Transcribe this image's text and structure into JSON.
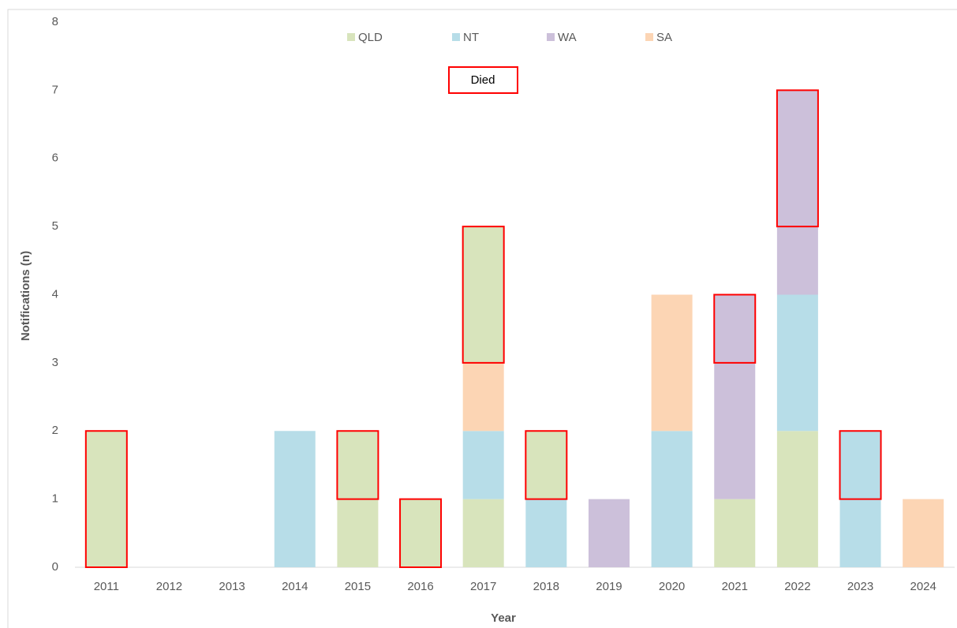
{
  "chart_data": {
    "type": "stacked-bar",
    "y_axis_label": "Notifications (n)",
    "x_axis_label": "Year",
    "categories": [
      "2011",
      "2012",
      "2013",
      "2014",
      "2015",
      "2016",
      "2017",
      "2018",
      "2019",
      "2020",
      "2021",
      "2022",
      "2023",
      "2024"
    ],
    "series": [
      {
        "name": "QLD",
        "color": "#d8e4bc",
        "values": [
          0,
          0,
          0,
          0,
          1,
          0,
          1,
          0,
          0,
          0,
          1,
          2,
          0,
          0
        ],
        "died": [
          2,
          0,
          0,
          0,
          1,
          1,
          2,
          1,
          0,
          0,
          0,
          0,
          0,
          0
        ]
      },
      {
        "name": "NT",
        "color": "#b7dde8",
        "values": [
          0,
          0,
          0,
          2,
          0,
          0,
          1,
          1,
          0,
          2,
          0,
          2,
          1,
          0
        ],
        "died": [
          0,
          0,
          0,
          0,
          0,
          0,
          0,
          0,
          0,
          0,
          0,
          0,
          1,
          0
        ]
      },
      {
        "name": "WA",
        "color": "#ccc0da",
        "values": [
          0,
          0,
          0,
          0,
          0,
          0,
          0,
          0,
          1,
          0,
          2,
          1,
          0,
          0
        ],
        "died": [
          0,
          0,
          0,
          0,
          0,
          0,
          0,
          0,
          0,
          0,
          1,
          2,
          0,
          0
        ]
      },
      {
        "name": "SA",
        "color": "#fcd5b4",
        "values": [
          0,
          0,
          0,
          0,
          0,
          0,
          1,
          0,
          0,
          2,
          0,
          0,
          0,
          1
        ],
        "died": [
          0,
          0,
          0,
          0,
          0,
          0,
          0,
          0,
          0,
          0,
          0,
          0,
          0,
          0
        ]
      }
    ],
    "died_label": "Died",
    "died_color": "#ff0000",
    "ylim": [
      0,
      8
    ],
    "yticks": [
      0,
      1,
      2,
      3,
      4,
      5,
      6,
      7,
      8
    ],
    "grid": false,
    "legend": "top"
  }
}
